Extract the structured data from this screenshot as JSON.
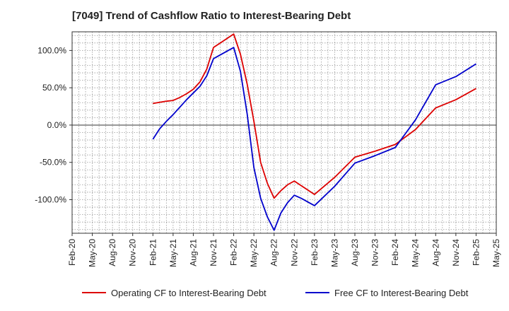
{
  "chart_data": {
    "type": "line",
    "title": "[7049]  Trend of Cashflow Ratio to Interest-Bearing Debt",
    "xlabel": "",
    "ylabel": "",
    "x_ticks": [
      "Feb-20",
      "May-20",
      "Aug-20",
      "Nov-20",
      "Feb-21",
      "May-21",
      "Aug-21",
      "Nov-21",
      "Feb-22",
      "May-22",
      "Aug-22",
      "Nov-22",
      "Feb-23",
      "May-23",
      "Aug-23",
      "Nov-23",
      "Feb-24",
      "May-24",
      "Aug-24",
      "Nov-24",
      "Feb-25",
      "May-25"
    ],
    "y_ticks": [
      100,
      50,
      0,
      -50,
      -100
    ],
    "y_tick_labels": [
      "100.0%",
      "50.0%",
      "0.0%",
      "-50.0%",
      "-100.0%"
    ],
    "ylim": [
      -145,
      125
    ],
    "grid": true,
    "legend_position": "bottom",
    "series": [
      {
        "name": "Operating CF to Interest-Bearing Debt",
        "color": "#dd0000",
        "points": [
          [
            "Feb-21",
            29
          ],
          [
            "Mar-21",
            30.5
          ],
          [
            "Apr-21",
            32
          ],
          [
            "May-21",
            33
          ],
          [
            "Jun-21",
            37
          ],
          [
            "Jul-21",
            42
          ],
          [
            "Aug-21",
            48
          ],
          [
            "Sep-21",
            58
          ],
          [
            "Oct-21",
            75
          ],
          [
            "Nov-21",
            104
          ],
          [
            "Dec-21",
            110
          ],
          [
            "Jan-22",
            116
          ],
          [
            "Feb-22",
            122
          ],
          [
            "Mar-22",
            95
          ],
          [
            "Apr-22",
            55
          ],
          [
            "May-22",
            5
          ],
          [
            "Jun-22",
            -50
          ],
          [
            "Jul-22",
            -78
          ],
          [
            "Aug-22",
            -98
          ],
          [
            "Sep-22",
            -88
          ],
          [
            "Oct-22",
            -80
          ],
          [
            "Nov-22",
            -75
          ],
          [
            "Dec-22",
            -81
          ],
          [
            "Jan-23",
            -87
          ],
          [
            "Feb-23",
            -93
          ],
          [
            "May-23",
            -70
          ],
          [
            "Aug-23",
            -43
          ],
          [
            "Nov-23",
            -35
          ],
          [
            "Feb-24",
            -26
          ],
          [
            "May-24",
            -6
          ],
          [
            "Aug-24",
            23
          ],
          [
            "Nov-24",
            34
          ],
          [
            "Feb-25",
            49
          ]
        ]
      },
      {
        "name": "Free CF to Interest-Bearing Debt",
        "color": "#0000cc",
        "points": [
          [
            "Feb-21",
            -19
          ],
          [
            "Mar-21",
            -5
          ],
          [
            "Apr-21",
            5
          ],
          [
            "May-21",
            14
          ],
          [
            "Jun-21",
            24
          ],
          [
            "Jul-21",
            34
          ],
          [
            "Aug-21",
            43
          ],
          [
            "Sep-21",
            52
          ],
          [
            "Oct-21",
            66
          ],
          [
            "Nov-21",
            89
          ],
          [
            "Dec-21",
            94
          ],
          [
            "Jan-22",
            99
          ],
          [
            "Feb-22",
            104
          ],
          [
            "Mar-22",
            72
          ],
          [
            "Apr-22",
            15
          ],
          [
            "May-22",
            -57
          ],
          [
            "Jun-22",
            -98
          ],
          [
            "Jul-22",
            -123
          ],
          [
            "Aug-22",
            -141
          ],
          [
            "Sep-22",
            -118
          ],
          [
            "Oct-22",
            -104
          ],
          [
            "Nov-22",
            -94
          ],
          [
            "Dec-22",
            -98
          ],
          [
            "Jan-23",
            -103
          ],
          [
            "Feb-23",
            -108
          ],
          [
            "May-23",
            -82
          ],
          [
            "Aug-23",
            -51
          ],
          [
            "Nov-23",
            -41
          ],
          [
            "Feb-24",
            -30
          ],
          [
            "May-24",
            7
          ],
          [
            "Aug-24",
            54
          ],
          [
            "Nov-24",
            65
          ],
          [
            "Feb-25",
            82
          ]
        ]
      }
    ]
  }
}
